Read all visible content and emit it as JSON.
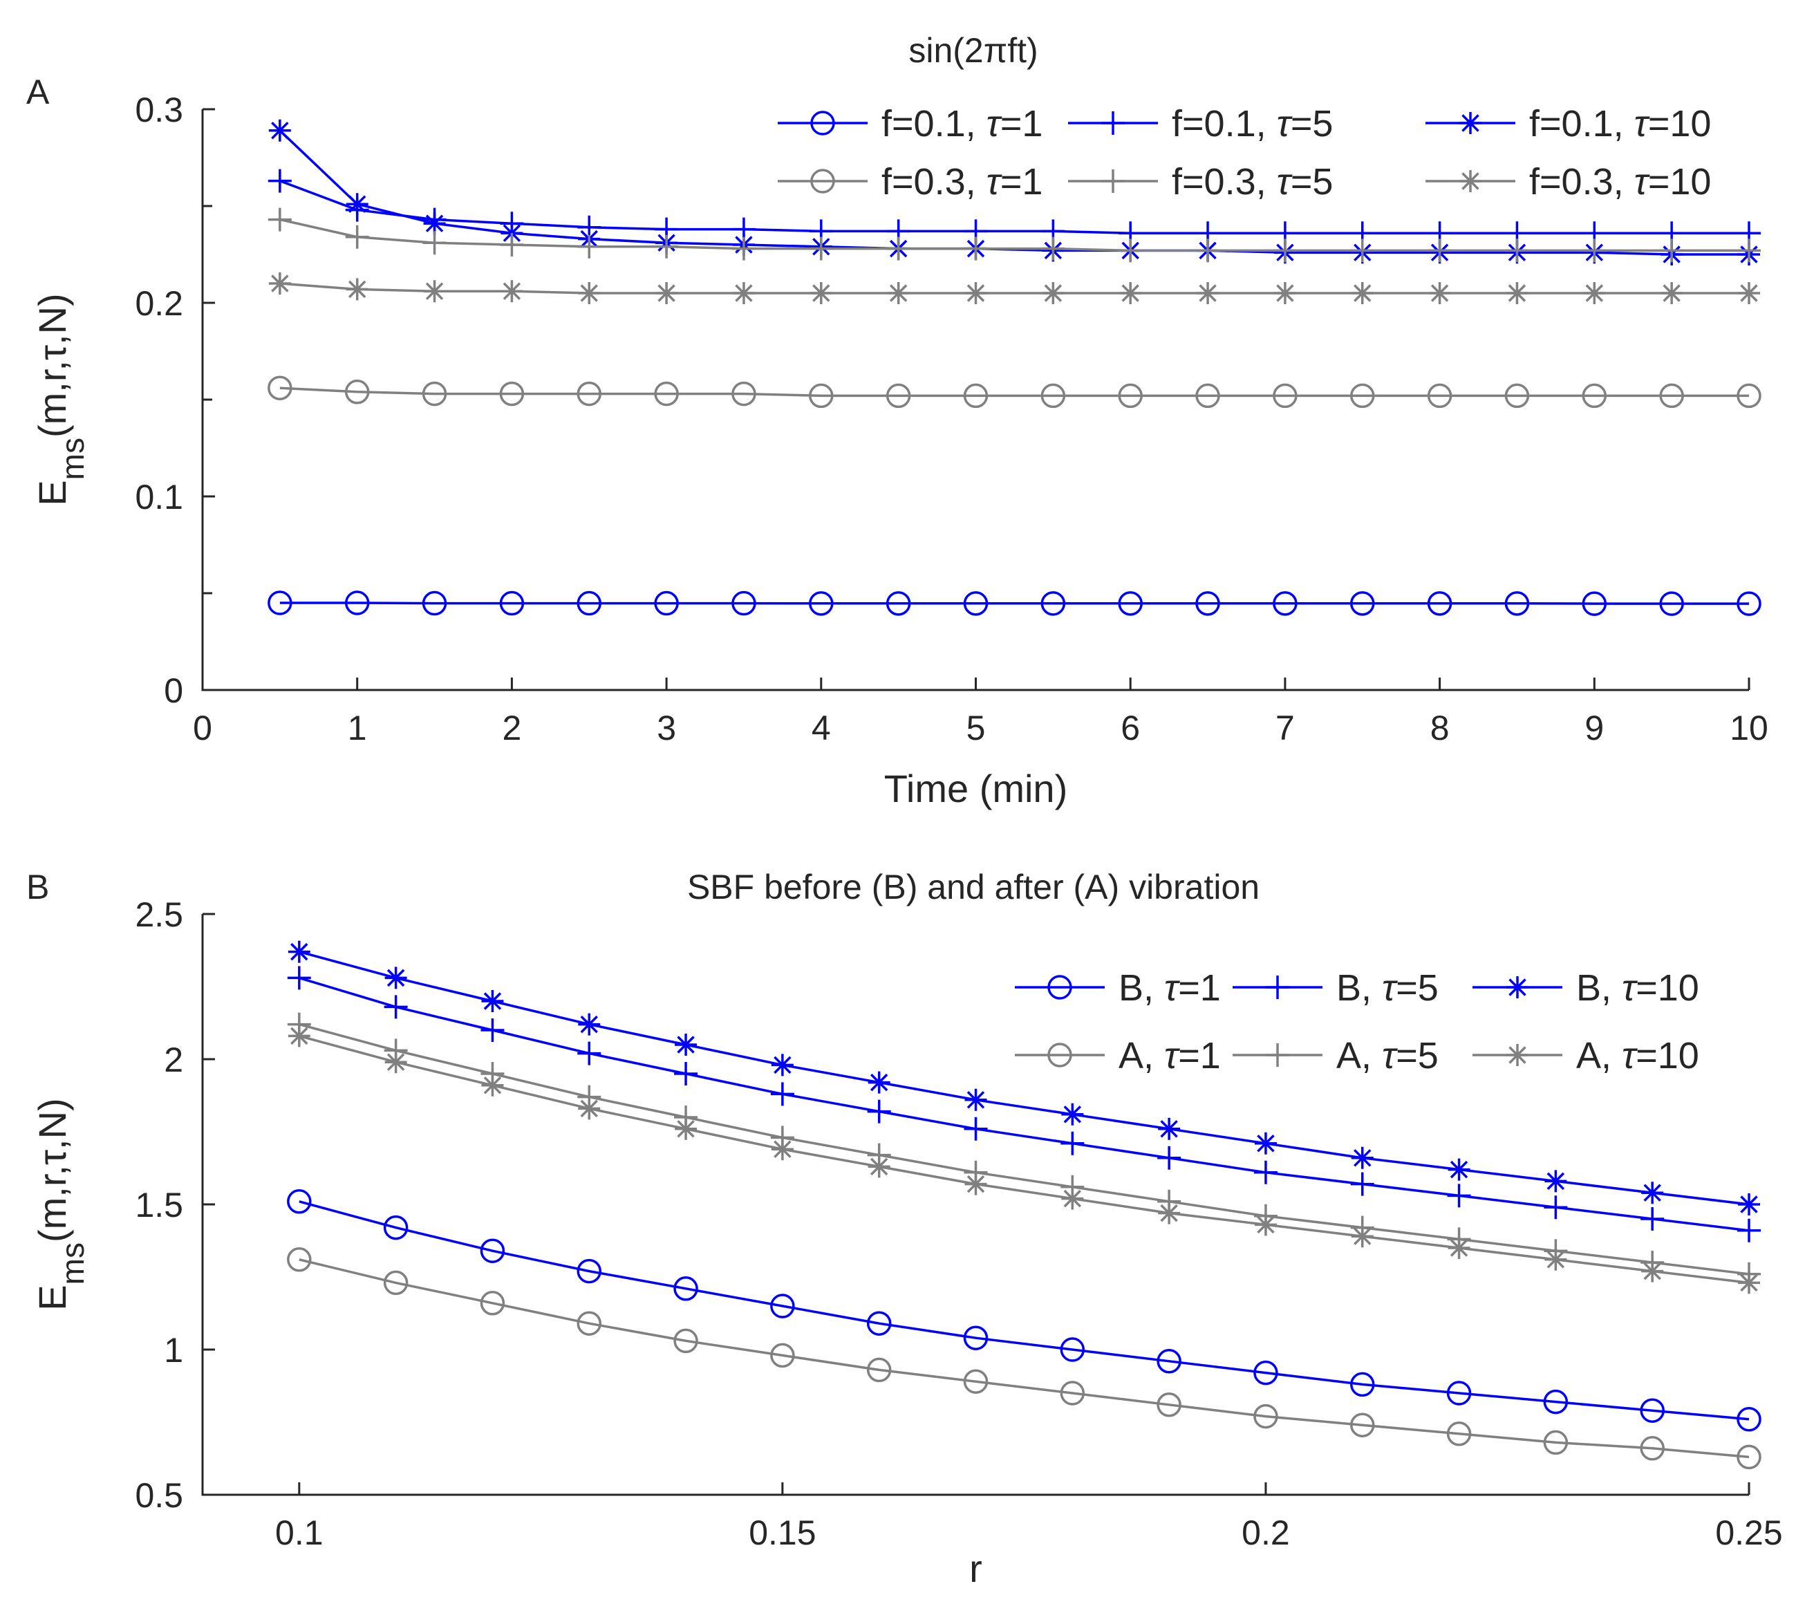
{
  "chart_data": [
    {
      "panel": "A",
      "type": "line",
      "title": "sin(2πft)",
      "xlabel": "Time (min)",
      "ylabel": "E_ms(m,r,τ,N)",
      "ylabel_parts": {
        "main": "E",
        "sub": "ms",
        "rest": "(m,r,τ,N)"
      },
      "xlim": [
        0,
        10
      ],
      "ylim": [
        0,
        0.3
      ],
      "xticks": [
        0,
        1,
        2,
        3,
        4,
        5,
        6,
        7,
        8,
        9,
        10
      ],
      "xtick_labels": [
        "0",
        "1",
        "2",
        "3",
        "4",
        "5",
        "6",
        "7",
        "8",
        "9",
        "10"
      ],
      "yticks": [
        0,
        0.1,
        0.2,
        0.3
      ],
      "ytick_labels": [
        "0",
        "0.1",
        "0.2",
        "0.3"
      ],
      "yminor_ticks": [
        0.05,
        0.15,
        0.25
      ],
      "legend_position": "top-right",
      "legend_columns": 3,
      "grid": false,
      "x": [
        0.5,
        1,
        1.5,
        2,
        2.5,
        3,
        3.5,
        4,
        4.5,
        5,
        5.5,
        6,
        6.5,
        7,
        7.5,
        8,
        8.5,
        9,
        9.5,
        10
      ],
      "series": [
        {
          "name": "f=0.1, τ=1",
          "name_parts": [
            "f=0.1, ",
            "τ",
            "=1"
          ],
          "color": "#0000ff",
          "marker": "circle",
          "values": [
            0.045,
            0.045,
            0.0448,
            0.0448,
            0.0448,
            0.0448,
            0.0448,
            0.0447,
            0.0447,
            0.0447,
            0.0447,
            0.0447,
            0.0447,
            0.0447,
            0.0447,
            0.0447,
            0.0447,
            0.0446,
            0.0446,
            0.0446
          ]
        },
        {
          "name": "f=0.1, τ=5",
          "name_parts": [
            "f=0.1, ",
            "τ",
            "=5"
          ],
          "color": "#0000ff",
          "marker": "plus",
          "values": [
            0.263,
            0.248,
            0.243,
            0.241,
            0.239,
            0.238,
            0.238,
            0.237,
            0.237,
            0.237,
            0.237,
            0.236,
            0.236,
            0.236,
            0.236,
            0.236,
            0.236,
            0.236,
            0.236,
            0.236
          ]
        },
        {
          "name": "f=0.1, τ=10",
          "name_parts": [
            "f=0.1, ",
            "τ",
            "=10"
          ],
          "color": "#0000ff",
          "marker": "star",
          "values": [
            0.289,
            0.251,
            0.241,
            0.236,
            0.233,
            0.231,
            0.23,
            0.229,
            0.228,
            0.228,
            0.227,
            0.227,
            0.227,
            0.226,
            0.226,
            0.226,
            0.226,
            0.226,
            0.225,
            0.225
          ]
        },
        {
          "name": "f=0.3, τ=1",
          "name_parts": [
            "f=0.3, ",
            "τ",
            "=1"
          ],
          "color": "#808080",
          "marker": "circle",
          "values": [
            0.156,
            0.154,
            0.153,
            0.153,
            0.153,
            0.153,
            0.153,
            0.152,
            0.152,
            0.152,
            0.152,
            0.152,
            0.152,
            0.152,
            0.152,
            0.152,
            0.152,
            0.152,
            0.152,
            0.152
          ]
        },
        {
          "name": "f=0.3, τ=5",
          "name_parts": [
            "f=0.3, ",
            "τ",
            "=5"
          ],
          "color": "#808080",
          "marker": "plus",
          "values": [
            0.243,
            0.234,
            0.231,
            0.23,
            0.229,
            0.229,
            0.228,
            0.228,
            0.228,
            0.228,
            0.228,
            0.227,
            0.227,
            0.227,
            0.227,
            0.227,
            0.227,
            0.227,
            0.227,
            0.227
          ]
        },
        {
          "name": "f=0.3, τ=10",
          "name_parts": [
            "f=0.3, ",
            "τ",
            "=10"
          ],
          "color": "#808080",
          "marker": "star",
          "values": [
            0.21,
            0.207,
            0.206,
            0.206,
            0.205,
            0.205,
            0.205,
            0.205,
            0.205,
            0.205,
            0.205,
            0.205,
            0.205,
            0.205,
            0.205,
            0.205,
            0.205,
            0.205,
            0.205,
            0.205
          ]
        }
      ]
    },
    {
      "panel": "B",
      "type": "line",
      "title": "SBF before (B) and after (A) vibration",
      "xlabel": "r",
      "ylabel": "E_ms(m,r,τ,N)",
      "ylabel_parts": {
        "main": "E",
        "sub": "ms",
        "rest": "(m,r,τ,N)"
      },
      "xlim": [
        0.09,
        0.25
      ],
      "ylim": [
        0.5,
        2.5
      ],
      "xticks": [
        0.1,
        0.15,
        0.2,
        0.25
      ],
      "xtick_labels": [
        "0.1",
        "0.15",
        "0.2",
        "0.25"
      ],
      "yticks": [
        0.5,
        1,
        1.5,
        2,
        2.5
      ],
      "ytick_labels": [
        "0.5",
        "1",
        "1.5",
        "2",
        "2.5"
      ],
      "legend_position": "top-right",
      "legend_columns": 3,
      "grid": false,
      "x": [
        0.1,
        0.11,
        0.12,
        0.13,
        0.14,
        0.15,
        0.16,
        0.17,
        0.18,
        0.19,
        0.2,
        0.21,
        0.22,
        0.23,
        0.24,
        0.25
      ],
      "series": [
        {
          "name": "B, τ=1",
          "name_parts": [
            "B, ",
            "τ",
            "=1"
          ],
          "color": "#0000ff",
          "marker": "circle",
          "values": [
            1.51,
            1.42,
            1.34,
            1.27,
            1.21,
            1.15,
            1.09,
            1.04,
            1.0,
            0.96,
            0.92,
            0.88,
            0.85,
            0.82,
            0.79,
            0.76
          ]
        },
        {
          "name": "B, τ=5",
          "name_parts": [
            "B, ",
            "τ",
            "=5"
          ],
          "color": "#0000ff",
          "marker": "plus",
          "values": [
            2.28,
            2.18,
            2.1,
            2.02,
            1.95,
            1.88,
            1.82,
            1.76,
            1.71,
            1.66,
            1.61,
            1.57,
            1.53,
            1.49,
            1.45,
            1.41
          ]
        },
        {
          "name": "B, τ=10",
          "name_parts": [
            "B, ",
            "τ",
            "=10"
          ],
          "color": "#0000ff",
          "marker": "star",
          "values": [
            2.37,
            2.28,
            2.2,
            2.12,
            2.05,
            1.98,
            1.92,
            1.86,
            1.81,
            1.76,
            1.71,
            1.66,
            1.62,
            1.58,
            1.54,
            1.5
          ]
        },
        {
          "name": "A, τ=1",
          "name_parts": [
            "A, ",
            "τ",
            "=1"
          ],
          "color": "#808080",
          "marker": "circle",
          "values": [
            1.31,
            1.23,
            1.16,
            1.09,
            1.03,
            0.98,
            0.93,
            0.89,
            0.85,
            0.81,
            0.77,
            0.74,
            0.71,
            0.68,
            0.66,
            0.63
          ]
        },
        {
          "name": "A, τ=5",
          "name_parts": [
            "A, ",
            "τ",
            "=5"
          ],
          "color": "#808080",
          "marker": "plus",
          "values": [
            2.12,
            2.03,
            1.95,
            1.87,
            1.8,
            1.73,
            1.67,
            1.61,
            1.56,
            1.51,
            1.46,
            1.42,
            1.38,
            1.34,
            1.3,
            1.26
          ]
        },
        {
          "name": "A, τ=10",
          "name_parts": [
            "A, ",
            "τ",
            "=10"
          ],
          "color": "#808080",
          "marker": "star",
          "values": [
            2.08,
            1.99,
            1.91,
            1.83,
            1.76,
            1.69,
            1.63,
            1.57,
            1.52,
            1.47,
            1.43,
            1.39,
            1.35,
            1.31,
            1.27,
            1.23
          ]
        }
      ]
    }
  ]
}
